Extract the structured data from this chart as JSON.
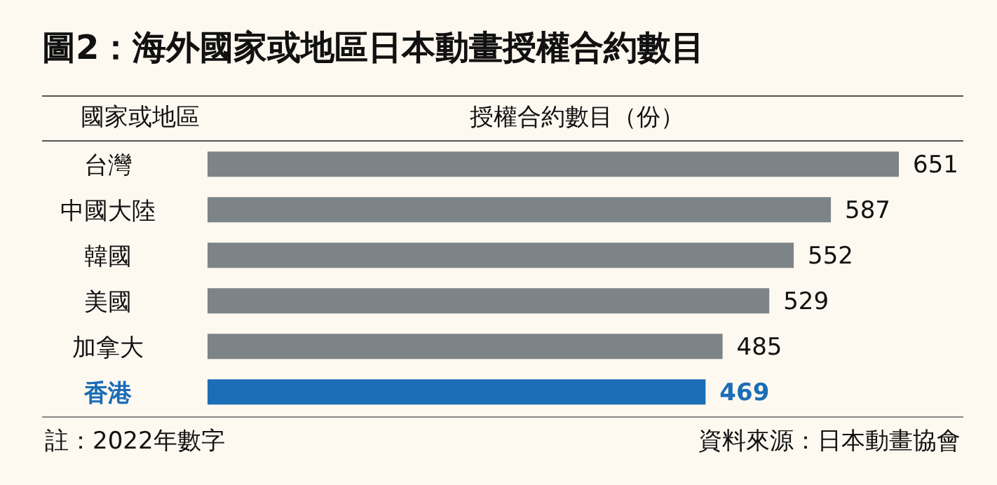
{
  "chart_data": {
    "type": "bar",
    "orientation": "horizontal",
    "title": "圖2：海外國家或地區日本動畫授權合約數目",
    "ylabel": "國家或地區",
    "xlabel": "授權合約數目（份）",
    "categories": [
      "台灣",
      "中國大陸",
      "韓國",
      "美國",
      "加拿大",
      "香港"
    ],
    "values": [
      651,
      587,
      552,
      529,
      485,
      469
    ],
    "colors": [
      "#7d8488",
      "#7d8488",
      "#7d8488",
      "#7d8488",
      "#7d8488",
      "#1b6db6"
    ],
    "tick_labels": "y",
    "data_labels": true,
    "annotations": [
      "註：2022年數字",
      "資料來源：日本動畫協會"
    ]
  }
}
